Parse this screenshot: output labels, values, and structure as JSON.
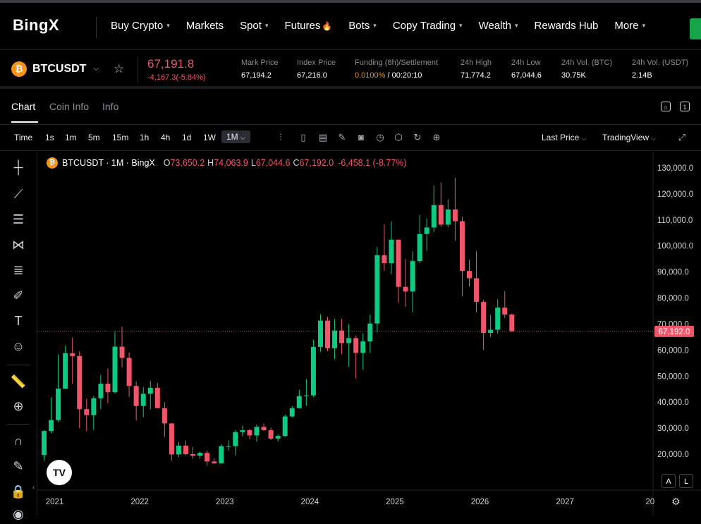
{
  "nav": {
    "logo": "BingX",
    "items": [
      {
        "label": "Buy Crypto",
        "caret": true
      },
      {
        "label": "Markets",
        "caret": false
      },
      {
        "label": "Spot",
        "caret": true
      },
      {
        "label": "Futures",
        "caret": false,
        "fire": true
      },
      {
        "label": "Bots",
        "caret": true
      },
      {
        "label": "Copy Trading",
        "caret": true
      },
      {
        "label": "Wealth",
        "caret": true
      },
      {
        "label": "Rewards Hub",
        "caret": false
      },
      {
        "label": "More",
        "caret": true
      }
    ]
  },
  "ticker": {
    "symbol": "BTCUSDT",
    "last_price": "67,191.8",
    "change": "-4,167.3(-5.84%)",
    "stats": [
      {
        "label": "Mark Price",
        "value": "67,194.2"
      },
      {
        "label": "Index Price",
        "value": "67,216.0"
      },
      {
        "label": "Funding (8h)/Settlement",
        "value_a": "0.0100%",
        "value_b": " / 00:20:10"
      },
      {
        "label": "24h High",
        "value": "71,774.2"
      },
      {
        "label": "24h Low",
        "value": "67,044.6"
      },
      {
        "label": "24h Vol. (BTC)",
        "value": "30.75K"
      },
      {
        "label": "24h Vol. (USDT)",
        "value": "2.14B"
      }
    ]
  },
  "tabs": {
    "chart": "Chart",
    "coin_info": "Coin Info",
    "info": "Info"
  },
  "toolbar": {
    "time_label": "Time",
    "intervals": [
      "1s",
      "1m",
      "5m",
      "15m",
      "1h",
      "4h",
      "1d",
      "1W"
    ],
    "selected_interval": "1M",
    "price_type": "Last Price",
    "view_mode": "TradingView"
  },
  "legend": {
    "title": "BTCUSDT · 1M · BingX",
    "o_label": "O",
    "o": "73,650.2",
    "h_label": "H",
    "h": "74,063.9",
    "l_label": "L",
    "l": "67,044.6",
    "c_label": "C",
    "c": "67,192.0",
    "change": "-6,458.1 (-8.77%)"
  },
  "axis": {
    "price_ticks": [
      "130,000.0",
      "120,000.0",
      "110,000.0",
      "100,000.0",
      "90,000.0",
      "80,000.0",
      "70,000.0",
      "60,000.0",
      "50,000.0",
      "40,000.0",
      "30,000.0",
      "20,000.0"
    ],
    "year_ticks": [
      "2021",
      "2022",
      "2023",
      "2024",
      "2025",
      "2026",
      "2027",
      "20"
    ],
    "current_price_label": "67,192.0"
  },
  "bottom_buttons": {
    "auto": "A",
    "log": "L"
  },
  "colors": {
    "up": "#0ecb81",
    "down": "#f0556a",
    "accent": "#ff8a00",
    "bg": "#000000"
  },
  "chart_data": {
    "type": "candlestick",
    "interval": "1M",
    "candles": [
      {
        "t": "2020-12",
        "o": 19700,
        "h": 29300,
        "l": 17600,
        "c": 28900
      },
      {
        "t": "2021-01",
        "o": 28900,
        "h": 41900,
        "l": 28100,
        "c": 33100
      },
      {
        "t": "2021-02",
        "o": 33100,
        "h": 58300,
        "l": 32400,
        "c": 45200
      },
      {
        "t": "2021-03",
        "o": 45200,
        "h": 61700,
        "l": 45000,
        "c": 58800
      },
      {
        "t": "2021-04",
        "o": 58800,
        "h": 64800,
        "l": 47000,
        "c": 57700
      },
      {
        "t": "2021-05",
        "o": 57700,
        "h": 59500,
        "l": 30000,
        "c": 37300
      },
      {
        "t": "2021-06",
        "o": 37300,
        "h": 41300,
        "l": 28800,
        "c": 35000
      },
      {
        "t": "2021-07",
        "o": 35000,
        "h": 42400,
        "l": 29300,
        "c": 41500
      },
      {
        "t": "2021-08",
        "o": 41500,
        "h": 50500,
        "l": 37300,
        "c": 47100
      },
      {
        "t": "2021-09",
        "o": 47100,
        "h": 52900,
        "l": 39600,
        "c": 43800
      },
      {
        "t": "2021-10",
        "o": 43800,
        "h": 67000,
        "l": 43300,
        "c": 61300
      },
      {
        "t": "2021-11",
        "o": 61300,
        "h": 69000,
        "l": 53300,
        "c": 57000
      },
      {
        "t": "2021-12",
        "o": 57000,
        "h": 59100,
        "l": 42000,
        "c": 46200
      },
      {
        "t": "2022-01",
        "o": 46200,
        "h": 47900,
        "l": 33000,
        "c": 38500
      },
      {
        "t": "2022-02",
        "o": 38500,
        "h": 45800,
        "l": 34300,
        "c": 43200
      },
      {
        "t": "2022-03",
        "o": 43200,
        "h": 48200,
        "l": 37200,
        "c": 45500
      },
      {
        "t": "2022-04",
        "o": 45500,
        "h": 47400,
        "l": 37700,
        "c": 37700
      },
      {
        "t": "2022-05",
        "o": 37700,
        "h": 40000,
        "l": 26700,
        "c": 31800
      },
      {
        "t": "2022-06",
        "o": 31800,
        "h": 31900,
        "l": 17600,
        "c": 19900
      },
      {
        "t": "2022-07",
        "o": 19900,
        "h": 24700,
        "l": 18800,
        "c": 23300
      },
      {
        "t": "2022-08",
        "o": 23300,
        "h": 25200,
        "l": 19600,
        "c": 20000
      },
      {
        "t": "2022-09",
        "o": 20000,
        "h": 22800,
        "l": 18200,
        "c": 19400
      },
      {
        "t": "2022-10",
        "o": 19400,
        "h": 21000,
        "l": 18200,
        "c": 20500
      },
      {
        "t": "2022-11",
        "o": 20500,
        "h": 21400,
        "l": 15500,
        "c": 17200
      },
      {
        "t": "2022-12",
        "o": 17200,
        "h": 18400,
        "l": 16300,
        "c": 16500
      },
      {
        "t": "2023-01",
        "o": 16500,
        "h": 23900,
        "l": 16500,
        "c": 23100
      },
      {
        "t": "2023-02",
        "o": 23100,
        "h": 25200,
        "l": 21400,
        "c": 23100
      },
      {
        "t": "2023-03",
        "o": 23100,
        "h": 29200,
        "l": 19500,
        "c": 28500
      },
      {
        "t": "2023-04",
        "o": 28500,
        "h": 31000,
        "l": 26900,
        "c": 29200
      },
      {
        "t": "2023-05",
        "o": 29200,
        "h": 29800,
        "l": 25800,
        "c": 27200
      },
      {
        "t": "2023-06",
        "o": 27200,
        "h": 31400,
        "l": 24800,
        "c": 30500
      },
      {
        "t": "2023-07",
        "o": 30500,
        "h": 31800,
        "l": 28900,
        "c": 29200
      },
      {
        "t": "2023-08",
        "o": 29200,
        "h": 30200,
        "l": 25400,
        "c": 26000
      },
      {
        "t": "2023-09",
        "o": 26000,
        "h": 27500,
        "l": 24900,
        "c": 27000
      },
      {
        "t": "2023-10",
        "o": 27000,
        "h": 35200,
        "l": 26600,
        "c": 34500
      },
      {
        "t": "2023-11",
        "o": 34500,
        "h": 38400,
        "l": 34100,
        "c": 37700
      },
      {
        "t": "2023-12",
        "o": 37700,
        "h": 44700,
        "l": 37600,
        "c": 42300
      },
      {
        "t": "2024-01",
        "o": 42300,
        "h": 48900,
        "l": 38500,
        "c": 42600
      },
      {
        "t": "2024-02",
        "o": 42600,
        "h": 64000,
        "l": 41900,
        "c": 61200
      },
      {
        "t": "2024-03",
        "o": 61200,
        "h": 73800,
        "l": 59300,
        "c": 71300
      },
      {
        "t": "2024-04",
        "o": 71300,
        "h": 72800,
        "l": 59600,
        "c": 60700
      },
      {
        "t": "2024-05",
        "o": 60700,
        "h": 71900,
        "l": 56600,
        "c": 67500
      },
      {
        "t": "2024-06",
        "o": 67500,
        "h": 72000,
        "l": 58400,
        "c": 62700
      },
      {
        "t": "2024-07",
        "o": 62700,
        "h": 70000,
        "l": 53500,
        "c": 64600
      },
      {
        "t": "2024-08",
        "o": 64600,
        "h": 65600,
        "l": 49100,
        "c": 58900
      },
      {
        "t": "2024-09",
        "o": 58900,
        "h": 66400,
        "l": 52500,
        "c": 63300
      },
      {
        "t": "2024-10",
        "o": 63300,
        "h": 73600,
        "l": 58900,
        "c": 70200
      },
      {
        "t": "2024-11",
        "o": 70200,
        "h": 99600,
        "l": 66800,
        "c": 96400
      },
      {
        "t": "2024-12",
        "o": 96400,
        "h": 108300,
        "l": 90500,
        "c": 93400
      },
      {
        "t": "2025-01",
        "o": 93400,
        "h": 109400,
        "l": 89200,
        "c": 102400
      },
      {
        "t": "2025-02",
        "o": 102400,
        "h": 102500,
        "l": 78200,
        "c": 84300
      },
      {
        "t": "2025-03",
        "o": 84300,
        "h": 95000,
        "l": 76600,
        "c": 82500
      },
      {
        "t": "2025-04",
        "o": 82500,
        "h": 97900,
        "l": 74400,
        "c": 94200
      },
      {
        "t": "2025-05",
        "o": 94200,
        "h": 111900,
        "l": 93400,
        "c": 104600
      },
      {
        "t": "2025-06",
        "o": 104600,
        "h": 110500,
        "l": 98200,
        "c": 107100
      },
      {
        "t": "2025-07",
        "o": 107100,
        "h": 123200,
        "l": 105300,
        "c": 115700
      },
      {
        "t": "2025-08",
        "o": 115700,
        "h": 124400,
        "l": 107300,
        "c": 108200
      },
      {
        "t": "2025-09",
        "o": 108200,
        "h": 117900,
        "l": 107200,
        "c": 114000
      },
      {
        "t": "2025-10",
        "o": 114000,
        "h": 126200,
        "l": 102000,
        "c": 109500
      },
      {
        "t": "2025-11",
        "o": 109500,
        "h": 111200,
        "l": 80600,
        "c": 90400
      },
      {
        "t": "2025-12",
        "o": 90400,
        "h": 94600,
        "l": 84400,
        "c": 87600
      },
      {
        "t": "2026-01",
        "o": 87600,
        "h": 97900,
        "l": 74500,
        "c": 78500
      },
      {
        "t": "2026-02",
        "o": 78500,
        "h": 79300,
        "l": 60000,
        "c": 66600
      },
      {
        "t": "2026-03",
        "o": 66600,
        "h": 73500,
        "l": 65000,
        "c": 67800
      },
      {
        "t": "2026-04",
        "o": 67800,
        "h": 79400,
        "l": 66300,
        "c": 76300
      },
      {
        "t": "2026-05",
        "o": 76300,
        "h": 82600,
        "l": 72300,
        "c": 73650
      },
      {
        "t": "2026-06",
        "o": 73650.2,
        "h": 74063.9,
        "l": 67044.6,
        "c": 67192.0
      }
    ],
    "current_price": 67192.0,
    "ylim": [
      15000,
      133000
    ],
    "y_ticks": [
      130000,
      120000,
      110000,
      100000,
      90000,
      80000,
      70000,
      60000,
      50000,
      40000,
      30000,
      20000
    ]
  }
}
